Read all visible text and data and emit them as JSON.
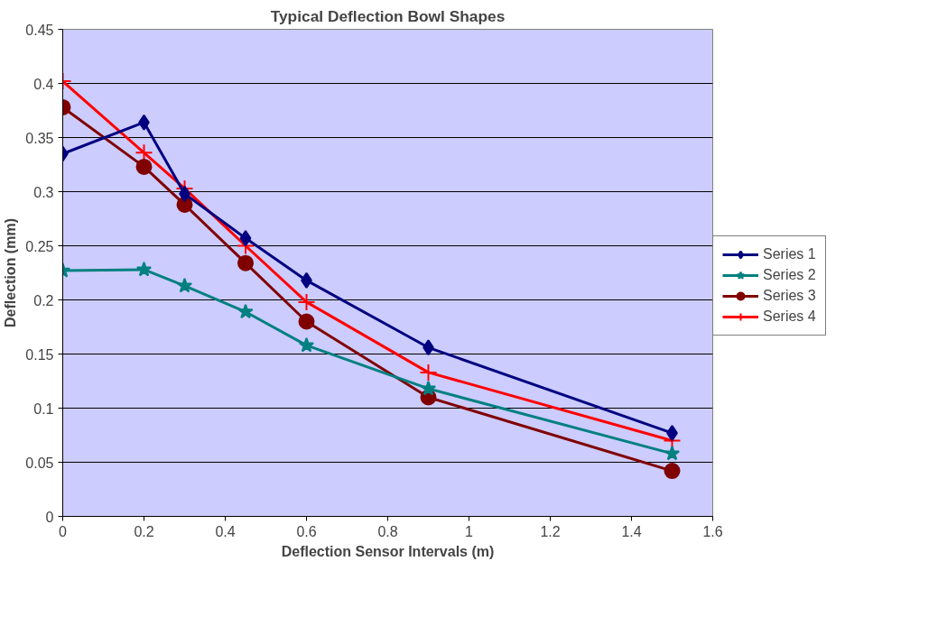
{
  "chart_data": {
    "type": "line",
    "title": "Typical Deflection Bowl Shapes",
    "xlabel": "Deflection Sensor Intervals (m)",
    "ylabel": "Deflection (mm)",
    "x": [
      0,
      0.2,
      0.3,
      0.45,
      0.6,
      0.9,
      1.5
    ],
    "series": [
      {
        "name": "Series 1",
        "color": "#000080",
        "marker": "diamond",
        "values": [
          0.335,
          0.364,
          0.298,
          0.257,
          0.218,
          0.156,
          0.077
        ]
      },
      {
        "name": "Series 2",
        "color": "#008080",
        "marker": "star",
        "values": [
          0.227,
          0.228,
          0.213,
          0.189,
          0.158,
          0.118,
          0.058
        ]
      },
      {
        "name": "Series 3",
        "color": "#800000",
        "marker": "circle",
        "values": [
          0.378,
          0.323,
          0.288,
          0.234,
          0.18,
          0.11,
          0.042
        ]
      },
      {
        "name": "Series 4",
        "color": "#ff0000",
        "marker": "cross",
        "values": [
          0.402,
          0.336,
          0.303,
          0.25,
          0.198,
          0.133,
          0.07
        ]
      }
    ],
    "xlim": [
      0,
      1.6
    ],
    "xticks": [
      0,
      0.2,
      0.4,
      0.6,
      0.8,
      1,
      1.2,
      1.4,
      1.6
    ],
    "ylim": [
      0,
      0.45
    ],
    "yticks": [
      0,
      0.05,
      0.1,
      0.15,
      0.2,
      0.25,
      0.3,
      0.35,
      0.4,
      0.45
    ],
    "grid": "y",
    "legend": "right",
    "line_style": "solid"
  }
}
